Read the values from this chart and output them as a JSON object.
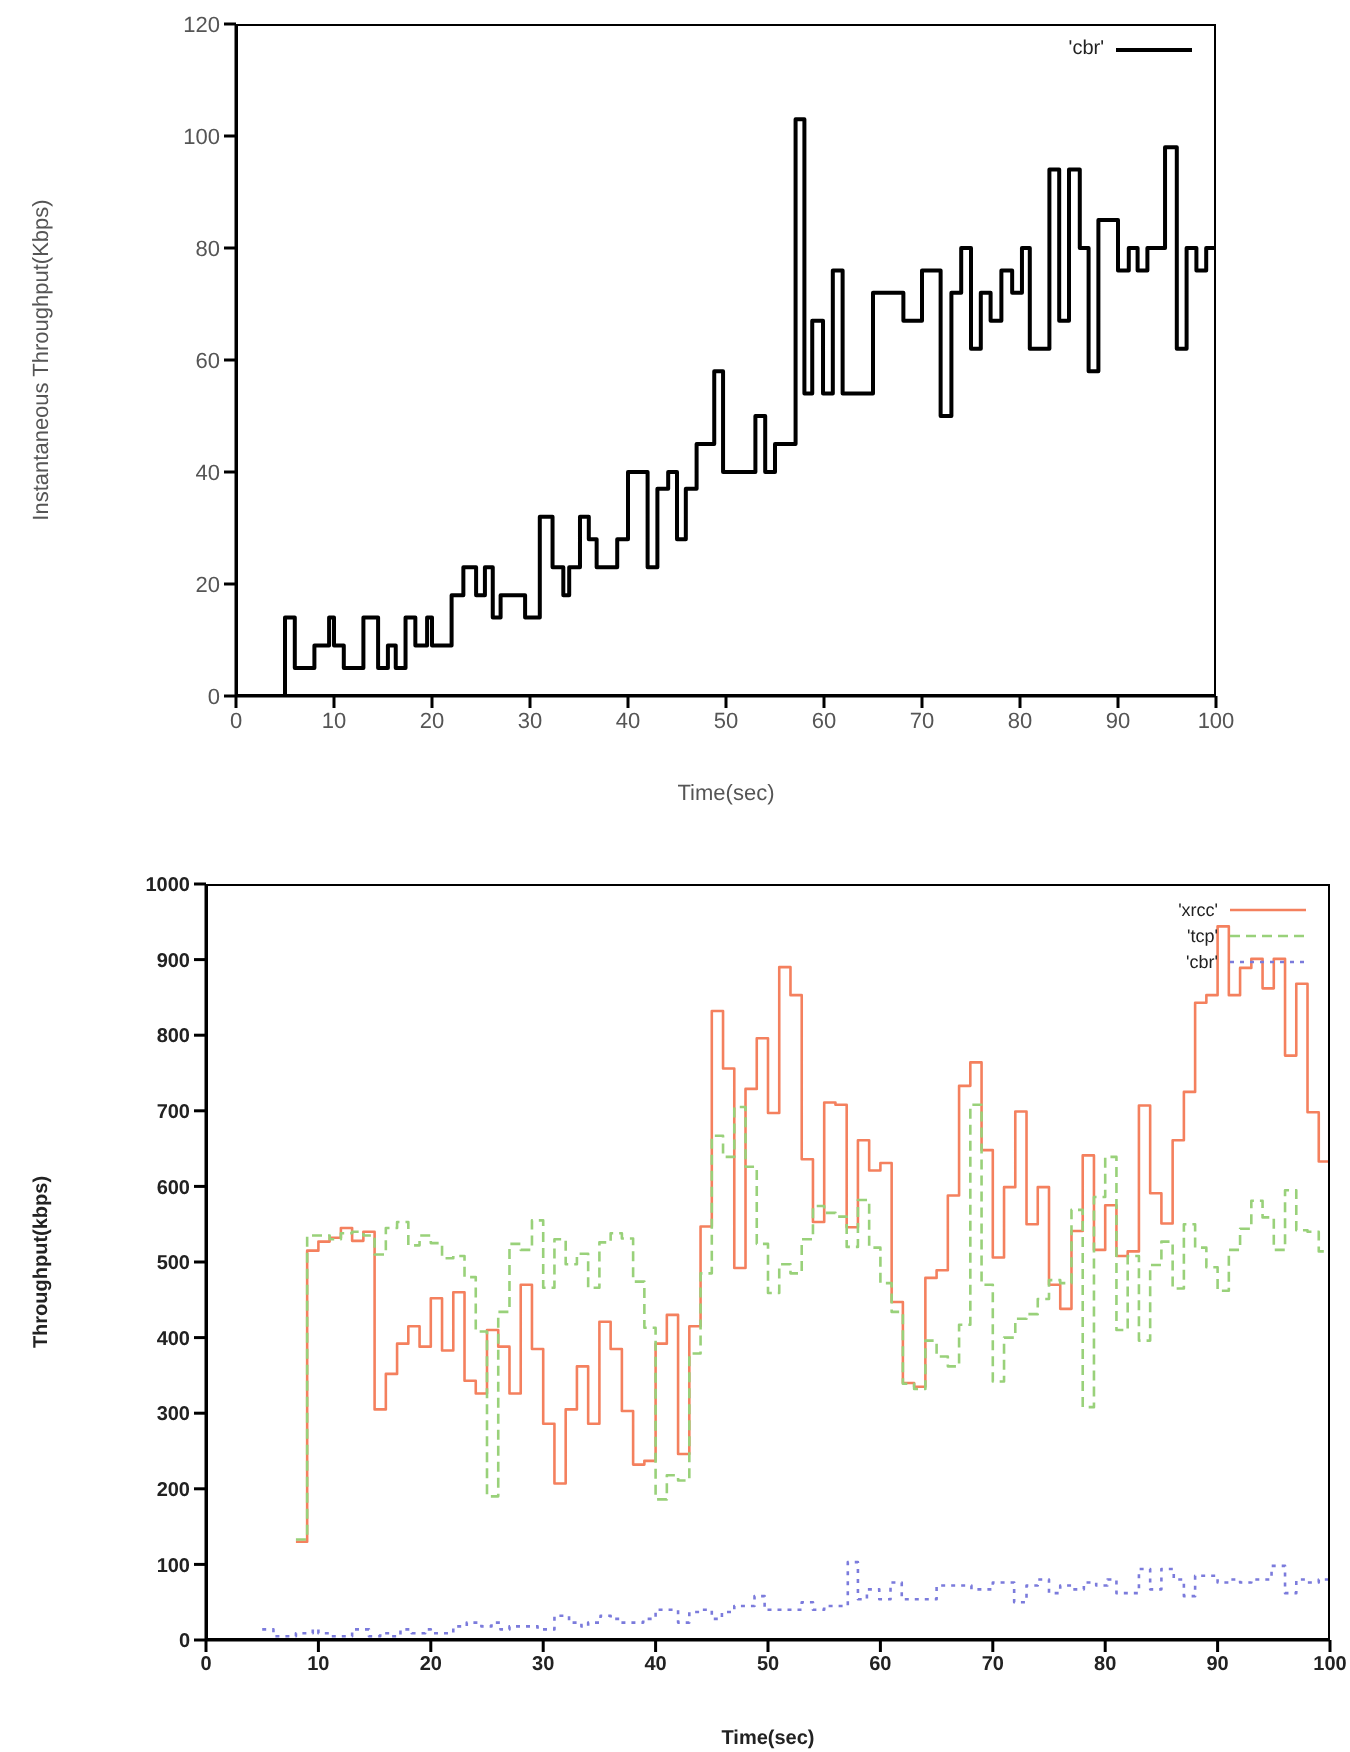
{
  "chart_data": [
    {
      "type": "step",
      "xlabel": "Time(sec)",
      "ylabel": "Instantaneous Throughput(Kbps)",
      "xlim": [
        0,
        100
      ],
      "ylim": [
        0,
        120
      ],
      "xticks": [
        0,
        10,
        20,
        30,
        40,
        50,
        60,
        70,
        80,
        90,
        100
      ],
      "yticks": [
        0,
        20,
        40,
        60,
        80,
        100,
        120
      ],
      "legend": "top right",
      "grid": false,
      "series": [
        {
          "name": "'cbr'",
          "color": "#000000",
          "line_style": "solid",
          "x": [
            0,
            5,
            6,
            8,
            9.5,
            10,
            11,
            13,
            14.5,
            15.5,
            16.3,
            17.3,
            18.3,
            19.5,
            20,
            22,
            23.2,
            24.5,
            25.4,
            26.2,
            27,
            29.5,
            31,
            32.3,
            33.4,
            34,
            35.1,
            36,
            36.8,
            38.9,
            40,
            42,
            43,
            44.1,
            45,
            45.9,
            47,
            48.8,
            49.7,
            53,
            54,
            55,
            57.1,
            58,
            58.8,
            59.9,
            60.9,
            61.9,
            65,
            68.1,
            70,
            71.9,
            73,
            74,
            75,
            76,
            77,
            78.1,
            79.2,
            80.2,
            81,
            83,
            84,
            85,
            86.1,
            87,
            88,
            90,
            91.1,
            92,
            93,
            94.8,
            96,
            97,
            98,
            99,
            100
          ],
          "values": [
            0,
            14,
            5,
            9,
            14,
            9,
            5,
            14,
            5,
            9,
            5,
            14,
            9,
            14,
            9,
            18,
            23,
            18,
            23,
            14,
            18,
            14,
            32,
            23,
            18,
            23,
            32,
            28,
            23,
            28,
            40,
            23,
            37,
            40,
            28,
            37,
            45,
            58,
            40,
            50,
            40,
            45,
            103,
            54,
            67,
            54,
            76,
            54,
            72,
            67,
            76,
            50,
            72,
            80,
            62,
            72,
            67,
            76,
            72,
            80,
            62,
            94,
            67,
            94,
            80,
            58,
            85,
            76,
            80,
            76,
            80,
            98,
            62,
            80,
            76,
            80,
            80
          ]
        }
      ]
    },
    {
      "type": "step",
      "xlabel": "Time(sec)",
      "ylabel": "Throughput(kbps)",
      "xlim": [
        0,
        100
      ],
      "ylim": [
        0,
        1000
      ],
      "xticks": [
        0,
        10,
        20,
        30,
        40,
        50,
        60,
        70,
        80,
        90,
        100
      ],
      "yticks": [
        0,
        100,
        200,
        300,
        400,
        500,
        600,
        700,
        800,
        900,
        1000
      ],
      "legend": "top right",
      "grid": false,
      "series": [
        {
          "name": "'xrcc'",
          "color": "#f4805e",
          "line_style": "solid",
          "x": [
            8,
            9,
            10,
            11,
            12,
            13,
            14,
            15,
            16,
            17,
            18,
            19,
            20,
            21,
            22,
            23,
            24,
            25,
            26,
            27,
            28,
            29,
            30,
            31,
            32,
            33,
            34,
            35,
            36,
            37,
            38,
            39,
            40,
            41,
            42,
            43,
            44,
            45,
            46,
            47,
            48,
            49,
            50,
            51,
            52,
            53,
            54,
            55,
            56,
            57,
            58,
            59,
            60,
            61,
            62,
            63,
            64,
            65,
            66,
            67,
            68,
            69,
            70,
            71,
            72,
            73,
            74,
            75,
            76,
            77,
            78,
            79,
            80,
            81,
            82,
            83,
            84,
            85,
            86,
            87,
            88,
            89,
            90,
            91,
            92,
            93,
            94,
            95,
            96,
            97,
            98,
            99,
            100
          ],
          "values": [
            130,
            515,
            527,
            532,
            545,
            528,
            540,
            305,
            352,
            392,
            415,
            388,
            452,
            383,
            460,
            343,
            326,
            410,
            388,
            326,
            470,
            385,
            286,
            207,
            305,
            362,
            286,
            421,
            385,
            303,
            232,
            237,
            392,
            430,
            246,
            415,
            547,
            832,
            756,
            492,
            729,
            796,
            697,
            890,
            853,
            636,
            553,
            711,
            708,
            546,
            661,
            621,
            631,
            447,
            340,
            335,
            479,
            489,
            588,
            733,
            764,
            648,
            506,
            599,
            699,
            550,
            599,
            470,
            438,
            541,
            641,
            516,
            575,
            508,
            514,
            707,
            591,
            551,
            661,
            725,
            843,
            853,
            944,
            853,
            889,
            901,
            862,
            901,
            773,
            868,
            698,
            633,
            633
          ]
        },
        {
          "name": "'tcp'",
          "color": "#99d17a",
          "line_style": "dashed",
          "x": [
            8,
            9,
            10,
            11,
            12,
            13,
            14,
            15,
            16,
            17,
            18,
            19,
            20,
            21,
            22,
            23,
            24,
            25,
            26,
            27,
            28,
            29,
            30,
            31,
            32,
            33,
            34,
            35,
            36,
            37,
            38,
            39,
            40,
            41,
            42,
            43,
            44,
            45,
            46,
            47,
            48,
            49,
            50,
            51,
            52,
            53,
            54,
            55,
            56,
            57,
            58,
            59,
            60,
            61,
            62,
            63,
            64,
            65,
            66,
            67,
            68,
            69,
            70,
            71,
            72,
            73,
            74,
            75,
            76,
            77,
            78,
            79,
            80,
            81,
            82,
            83,
            84,
            85,
            86,
            87,
            88,
            89,
            90,
            91,
            92,
            93,
            94,
            95,
            96,
            97,
            98,
            99,
            100
          ],
          "values": [
            133,
            535,
            535,
            530,
            538,
            540,
            535,
            510,
            545,
            553,
            522,
            535,
            525,
            505,
            508,
            480,
            408,
            190,
            434,
            524,
            516,
            555,
            466,
            530,
            497,
            511,
            466,
            526,
            538,
            531,
            474,
            413,
            186,
            218,
            211,
            379,
            485,
            667,
            639,
            705,
            626,
            524,
            459,
            497,
            485,
            530,
            574,
            565,
            560,
            520,
            582,
            519,
            472,
            434,
            339,
            332,
            396,
            375,
            362,
            417,
            708,
            470,
            342,
            400,
            425,
            431,
            451,
            476,
            472,
            569,
            308,
            586,
            639,
            410,
            508,
            396,
            496,
            527,
            465,
            550,
            519,
            493,
            462,
            516,
            544,
            581,
            559,
            516,
            595,
            542,
            540,
            514,
            514
          ]
        },
        {
          "name": "'cbr'",
          "color": "#7b7bdc",
          "line_style": "dotted",
          "x": [
            5,
            6,
            8,
            9.5,
            10,
            11,
            13,
            14.5,
            15.5,
            16.3,
            17.3,
            18.3,
            19.5,
            20,
            22,
            23.2,
            24.5,
            25.4,
            26.2,
            27,
            29.5,
            31,
            32.3,
            33.4,
            34,
            35.1,
            36,
            36.8,
            38.9,
            40,
            42,
            43,
            44.1,
            45,
            45.9,
            47,
            48.8,
            49.7,
            53,
            54,
            55,
            57.1,
            58,
            58.8,
            59.9,
            60.9,
            61.9,
            65,
            68.1,
            70,
            71.9,
            73,
            74,
            75,
            76,
            77,
            78.1,
            79.2,
            80.2,
            81,
            83,
            84,
            85,
            86.1,
            87,
            88,
            90,
            91.1,
            92,
            93,
            94.8,
            96,
            97,
            98,
            99,
            100
          ],
          "values": [
            14,
            5,
            9,
            14,
            9,
            5,
            14,
            5,
            9,
            5,
            14,
            9,
            14,
            9,
            18,
            23,
            18,
            23,
            14,
            18,
            14,
            32,
            23,
            18,
            23,
            32,
            28,
            23,
            28,
            40,
            23,
            37,
            40,
            28,
            37,
            45,
            58,
            40,
            50,
            40,
            45,
            103,
            54,
            67,
            54,
            76,
            54,
            72,
            67,
            76,
            50,
            72,
            80,
            62,
            72,
            67,
            76,
            72,
            80,
            62,
            94,
            67,
            94,
            80,
            58,
            85,
            76,
            80,
            76,
            80,
            98,
            62,
            80,
            76,
            80,
            80
          ]
        }
      ]
    }
  ]
}
